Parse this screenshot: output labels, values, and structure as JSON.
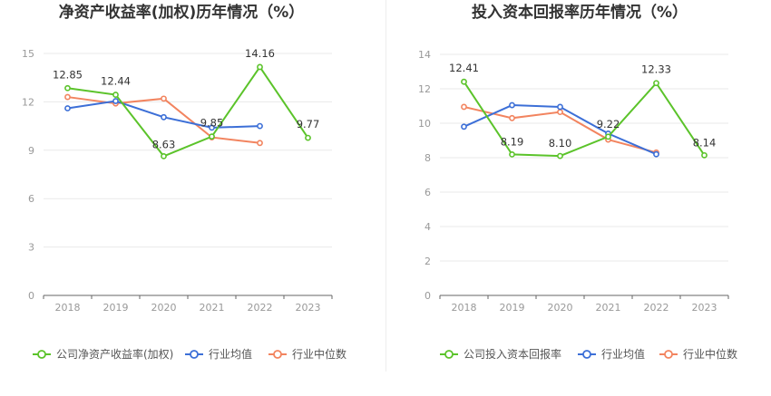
{
  "chart_data": [
    {
      "type": "line",
      "title": "净资产收益率(加权)历年情况（%）",
      "categories": [
        "2018",
        "2019",
        "2020",
        "2021",
        "2022",
        "2023"
      ],
      "ylim": [
        0,
        15
      ],
      "yticks": [
        0,
        3,
        6,
        9,
        12,
        15
      ],
      "grid": true,
      "legend": "bottom",
      "series": [
        {
          "name": "公司净资产收益率(加权)",
          "color": "#5bc32a",
          "values": [
            12.85,
            12.44,
            8.63,
            9.85,
            14.16,
            9.77
          ],
          "labeled": true
        },
        {
          "name": "行业均值",
          "color": "#3c6fd7",
          "values": [
            11.6,
            12.05,
            11.05,
            10.4,
            10.5,
            null
          ],
          "labeled": false
        },
        {
          "name": "行业中位数",
          "color": "#f2845f",
          "values": [
            12.3,
            11.9,
            12.2,
            9.8,
            9.45,
            null
          ],
          "labeled": false
        }
      ],
      "data_labels": [
        "12.85",
        "12.44",
        "8.63",
        "9.85",
        "14.16",
        "9.77"
      ]
    },
    {
      "type": "line",
      "title": "投入资本回报率历年情况（%）",
      "categories": [
        "2018",
        "2019",
        "2020",
        "2021",
        "2022",
        "2023"
      ],
      "ylim": [
        0,
        14
      ],
      "yticks": [
        0,
        2,
        4,
        6,
        8,
        10,
        12,
        14
      ],
      "grid": true,
      "legend": "bottom",
      "series": [
        {
          "name": "公司投入资本回报率",
          "color": "#5bc32a",
          "values": [
            12.41,
            8.19,
            8.1,
            9.22,
            12.33,
            8.14
          ],
          "labeled": true
        },
        {
          "name": "行业均值",
          "color": "#3c6fd7",
          "values": [
            9.8,
            11.05,
            10.95,
            9.4,
            8.2,
            null
          ],
          "labeled": false
        },
        {
          "name": "行业中位数",
          "color": "#f2845f",
          "values": [
            10.95,
            10.3,
            10.65,
            9.05,
            8.3,
            null
          ],
          "labeled": false
        }
      ],
      "data_labels": [
        "12.41",
        "8.19",
        "8.10",
        "9.22",
        "12.33",
        "8.14"
      ]
    }
  ]
}
